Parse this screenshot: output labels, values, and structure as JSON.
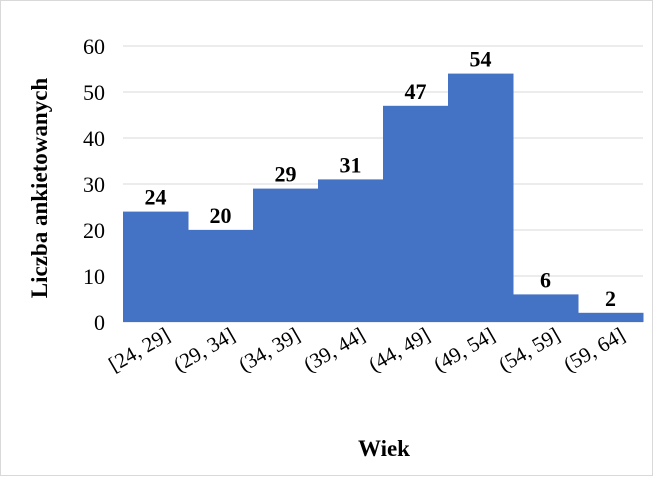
{
  "chart_data": {
    "type": "bar",
    "categories": [
      "[24, 29]",
      "(29, 34]",
      "(34, 39]",
      "(39, 44]",
      "(44, 49]",
      "(49, 54]",
      "(54, 59]",
      "(59, 64]"
    ],
    "values": [
      24,
      20,
      29,
      31,
      47,
      54,
      6,
      2
    ],
    "xlabel": "Wiek",
    "ylabel": "Liczba ankietowanych",
    "ylim": [
      0,
      60
    ],
    "yticks": [
      0,
      10,
      20,
      30,
      40,
      50,
      60
    ],
    "grid": true,
    "legend": "none",
    "bar_color": "#4472c4",
    "grid_color": "#d9d9d9"
  }
}
